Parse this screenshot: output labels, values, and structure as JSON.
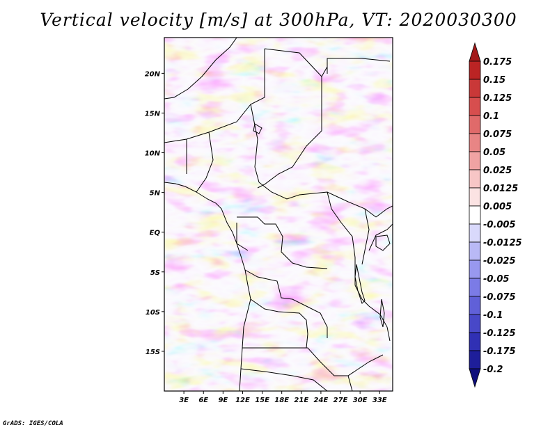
{
  "title": "Vertical velocity [m/s] at 300hPa, VT: 2020030300",
  "credit": "GrADS: IGES/COLA",
  "map": {
    "region": "Central Africa",
    "lon_range": [
      0,
      35
    ],
    "lat_range": [
      -20,
      24.5
    ],
    "lon_ticks": [
      {
        "value": 3,
        "label": "3E"
      },
      {
        "value": 6,
        "label": "6E"
      },
      {
        "value": 9,
        "label": "9E"
      },
      {
        "value": 12,
        "label": "12E"
      },
      {
        "value": 15,
        "label": "15E"
      },
      {
        "value": 18,
        "label": "18E"
      },
      {
        "value": 21,
        "label": "21E"
      },
      {
        "value": 24,
        "label": "24E"
      },
      {
        "value": 27,
        "label": "27E"
      },
      {
        "value": 30,
        "label": "30E"
      },
      {
        "value": 33,
        "label": "33E"
      }
    ],
    "lat_ticks": [
      {
        "value": 20,
        "label": "20N"
      },
      {
        "value": 15,
        "label": "15N"
      },
      {
        "value": 10,
        "label": "10N"
      },
      {
        "value": 5,
        "label": "5N"
      },
      {
        "value": 0,
        "label": "EQ"
      },
      {
        "value": -5,
        "label": "5S"
      },
      {
        "value": -10,
        "label": "10S"
      },
      {
        "value": -15,
        "label": "15S"
      }
    ]
  },
  "colorbar": {
    "levels": [
      "0.175",
      "0.15",
      "0.125",
      "0.1",
      "0.075",
      "0.05",
      "0.025",
      "0.0125",
      "0.005",
      "-0.005",
      "-0.0125",
      "-0.025",
      "-0.05",
      "-0.075",
      "-0.1",
      "-0.125",
      "-0.175",
      "-0.2"
    ],
    "colors": [
      "#a31a1a",
      "#bb2424",
      "#c93838",
      "#d74e4e",
      "#e06a6a",
      "#e88585",
      "#f0a3a3",
      "#f7c6c6",
      "#fbe3e3",
      "#ffffff",
      "#d9d9fb",
      "#b9b9f6",
      "#9898ef",
      "#7b7be6",
      "#6060d8",
      "#4848c8",
      "#3030b4",
      "#1e1e9a",
      "#0e0e7c"
    ]
  }
}
